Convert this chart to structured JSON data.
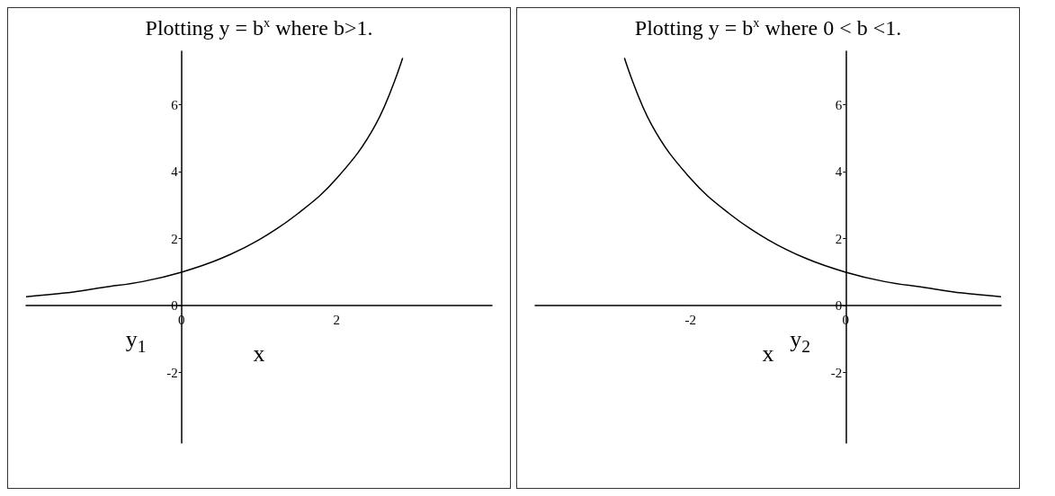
{
  "chart_data": [
    {
      "type": "line",
      "title": "Plotting y = b$^{x}$ where b>1.",
      "xlabel": "x",
      "ylabel": "y$_{1}$",
      "x": [
        -2,
        -1.5,
        -1,
        -0.5,
        0,
        0.5,
        1,
        1.5,
        2,
        2.5,
        2.85
      ],
      "series": [
        {
          "color": "#000000",
          "values": [
            0.27,
            0.38,
            0.55,
            0.72,
            1,
            1.4,
            1.97,
            2.75,
            3.8,
            5.4,
            7.4
          ]
        }
      ],
      "xlim": [
        -2,
        4
      ],
      "ylim": [
        -4.1,
        7.6
      ],
      "xticks": [
        0,
        2
      ],
      "yticks": [
        -2,
        0,
        2,
        4,
        6
      ],
      "marker": "none",
      "line_style": "solid"
    },
    {
      "type": "line",
      "title": "Plotting y = b$^{x}$ where 0 < b <1.",
      "xlabel": "x",
      "ylabel": "y$_{2}$",
      "x": [
        -2.85,
        -2.5,
        -2,
        -1.5,
        -1,
        -0.5,
        0,
        0.5,
        1,
        1.5,
        2
      ],
      "series": [
        {
          "color": "#000000",
          "values": [
            7.4,
            5.4,
            3.8,
            2.75,
            1.97,
            1.4,
            1,
            0.72,
            0.55,
            0.38,
            0.27
          ]
        }
      ],
      "xlim": [
        -4,
        2
      ],
      "ylim": [
        -4.1,
        7.6
      ],
      "xticks": [
        -2,
        0
      ],
      "yticks": [
        -2,
        0,
        2,
        4,
        6
      ],
      "marker": "none",
      "line_style": "solid"
    }
  ]
}
